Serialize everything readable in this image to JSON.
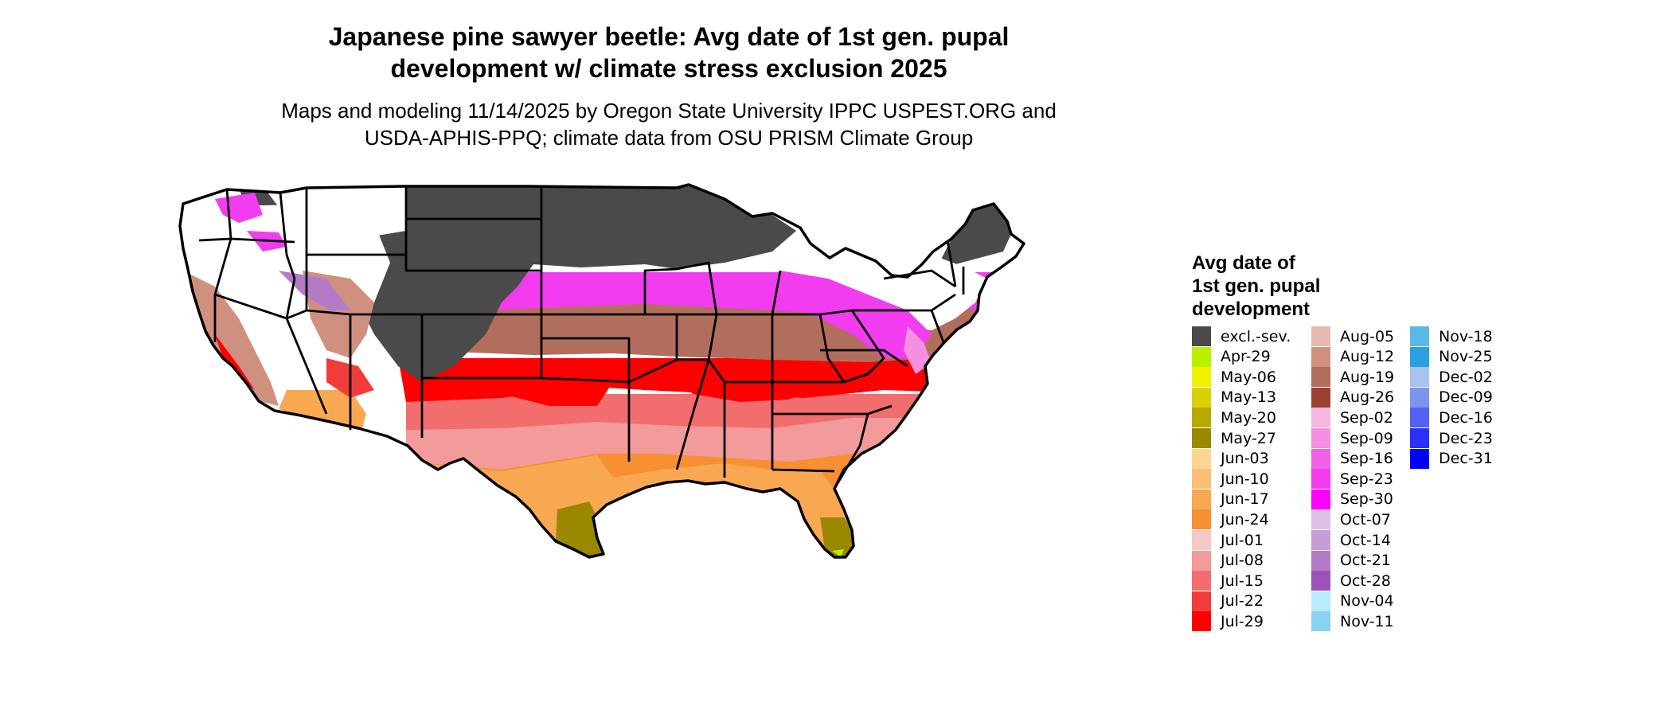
{
  "title": {
    "line1": "Japanese pine sawyer beetle: Avg date of 1st gen. pupal",
    "line2": "development w/ climate stress exclusion 2025"
  },
  "subtitle": {
    "line1": "Maps and modeling 11/14/2025 by Oregon State University IPPC USPEST.ORG and",
    "line2": "USDA-APHIS-PPQ; climate data from OSU PRISM Climate Group"
  },
  "legend": {
    "title_lines": [
      "Avg date of",
      "1st gen. pupal",
      "development"
    ],
    "columns": [
      [
        {
          "label": "excl.-sev.",
          "color": "#4a4a4a"
        },
        {
          "label": "Apr-29",
          "color": "#b8f000"
        },
        {
          "label": "May-06",
          "color": "#f2f200"
        },
        {
          "label": "May-13",
          "color": "#d8d000"
        },
        {
          "label": "May-20",
          "color": "#b8a800"
        },
        {
          "label": "May-27",
          "color": "#9a8800"
        },
        {
          "label": "Jun-03",
          "color": "#fcd690"
        },
        {
          "label": "Jun-10",
          "color": "#fbbf76"
        },
        {
          "label": "Jun-17",
          "color": "#f9a852"
        },
        {
          "label": "Jun-24",
          "color": "#f69030"
        },
        {
          "label": "Jul-01",
          "color": "#f5c7c7"
        },
        {
          "label": "Jul-08",
          "color": "#f39a9a"
        },
        {
          "label": "Jul-15",
          "color": "#f26d6d"
        },
        {
          "label": "Jul-22",
          "color": "#f23c3c"
        },
        {
          "label": "Jul-29",
          "color": "#ff0000"
        }
      ],
      [
        {
          "label": "Aug-05",
          "color": "#e6b8b0"
        },
        {
          "label": "Aug-12",
          "color": "#cf9080"
        },
        {
          "label": "Aug-19",
          "color": "#b26e5c"
        },
        {
          "label": "Aug-26",
          "color": "#9a4030"
        },
        {
          "label": "Sep-02",
          "color": "#f7b6e0"
        },
        {
          "label": "Sep-09",
          "color": "#f590e0"
        },
        {
          "label": "Sep-16",
          "color": "#f360e8"
        },
        {
          "label": "Sep-23",
          "color": "#f53aee"
        },
        {
          "label": "Sep-30",
          "color": "#ff00ff"
        },
        {
          "label": "Oct-07",
          "color": "#dcc0e6"
        },
        {
          "label": "Oct-14",
          "color": "#c79cd8"
        },
        {
          "label": "Oct-21",
          "color": "#b37ac8"
        },
        {
          "label": "Oct-28",
          "color": "#9c52b8"
        },
        {
          "label": "Nov-04",
          "color": "#b6ecfb"
        },
        {
          "label": "Nov-11",
          "color": "#88d2f2"
        }
      ],
      [
        {
          "label": "Nov-18",
          "color": "#5ab8e8"
        },
        {
          "label": "Nov-25",
          "color": "#2aa0e0"
        },
        {
          "label": "Dec-02",
          "color": "#a8c4ec"
        },
        {
          "label": "Dec-09",
          "color": "#7e94ea"
        },
        {
          "label": "Dec-16",
          "color": "#5460f0"
        },
        {
          "label": "Dec-23",
          "color": "#2a30f6"
        },
        {
          "label": "Dec-31",
          "color": "#0000ff"
        }
      ]
    ]
  },
  "map": {
    "colors": {
      "excluded": "#4a4a4a",
      "none": "#ffffff",
      "sep": "#f23cf0",
      "sepLight": "#f590e0",
      "oct": "#b37ac8",
      "aug": "#b26e5c",
      "augLight": "#cf9080",
      "jul29": "#ff0000",
      "jul22": "#f23c3c",
      "jul15": "#f26d6d",
      "jul08": "#f39a9a",
      "jul01": "#f5c7c7",
      "jun24": "#f69030",
      "jun17": "#f9a852",
      "may27": "#9a8800",
      "apr29": "#b8f000",
      "border": "#000000"
    }
  }
}
